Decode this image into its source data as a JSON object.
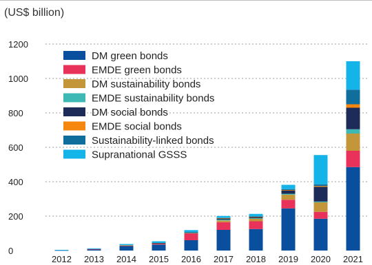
{
  "unit_label": "(US$ billion)",
  "colors": {
    "dm_green": "#0a4f9e",
    "emde_green": "#e8325a",
    "dm_sust": "#c4963a",
    "emde_sust": "#3db8b5",
    "dm_social": "#1d2b59",
    "emde_social": "#f5870f",
    "sll": "#0f6e9c",
    "supra": "#15b4e8",
    "grid": "#9e9e9e",
    "text": "#222222"
  },
  "chart_data": {
    "type": "bar",
    "stacked": true,
    "ylabel": "(US$ billion)",
    "ylim": [
      0,
      1200
    ],
    "yticks": [
      0,
      200,
      400,
      600,
      800,
      1000,
      1200
    ],
    "grid": "horizontal dotted",
    "legend_position": "top-left",
    "categories": [
      "2012",
      "2013",
      "2014",
      "2015",
      "2016",
      "2017",
      "2018",
      "2019",
      "2020",
      "2021"
    ],
    "series": [
      {
        "name": "DM green bonds",
        "color_key": "dm_green",
        "values": [
          2,
          8,
          27,
          35,
          60,
          120,
          125,
          245,
          185,
          485
        ]
      },
      {
        "name": "EMDE green bonds",
        "color_key": "emde_green",
        "values": [
          0,
          1,
          2,
          5,
          40,
          45,
          45,
          50,
          40,
          95
        ]
      },
      {
        "name": "DM sustainability bonds",
        "color_key": "dm_sust",
        "values": [
          0,
          0,
          2,
          2,
          3,
          10,
          15,
          30,
          55,
          100
        ]
      },
      {
        "name": "EMDE sustainability bonds",
        "color_key": "emde_sust",
        "values": [
          0,
          0,
          0,
          0,
          1,
          5,
          3,
          5,
          5,
          25
        ]
      },
      {
        "name": "DM social bonds",
        "color_key": "dm_social",
        "values": [
          0,
          0,
          0,
          2,
          3,
          8,
          8,
          20,
          85,
          125
        ]
      },
      {
        "name": "EMDE social bonds",
        "color_key": "emde_social",
        "values": [
          0,
          0,
          0,
          0,
          0,
          1,
          1,
          2,
          5,
          20
        ]
      },
      {
        "name": "Sustainability-linked bonds",
        "color_key": "sll",
        "values": [
          0,
          0,
          0,
          0,
          0,
          0,
          2,
          5,
          10,
          85
        ]
      },
      {
        "name": "Supranational GSSS",
        "color_key": "supra",
        "values": [
          2,
          4,
          7,
          10,
          12,
          12,
          14,
          25,
          170,
          165
        ]
      }
    ]
  }
}
